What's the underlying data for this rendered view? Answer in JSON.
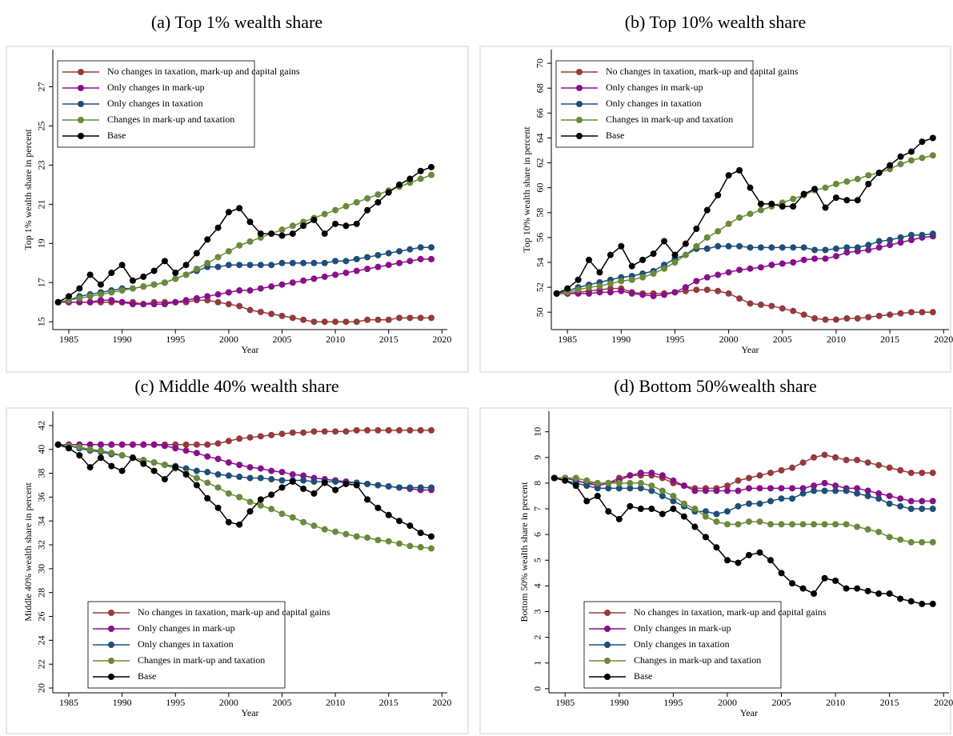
{
  "chart_data": [
    {
      "type": "line",
      "title": "(a) Top 1% wealth share",
      "xlabel": "Year",
      "ylabel": "Top 1% wealth share in percent",
      "legend": "upper left",
      "x": [
        1984,
        1985,
        1986,
        1987,
        1988,
        1989,
        1990,
        1991,
        1992,
        1993,
        1994,
        1995,
        1996,
        1997,
        1998,
        1999,
        2000,
        2001,
        2002,
        2003,
        2004,
        2005,
        2006,
        2007,
        2008,
        2009,
        2010,
        2011,
        2012,
        2013,
        2014,
        2015,
        2016,
        2017,
        2018,
        2019
      ],
      "xlim": [
        1983.5,
        2020.5
      ],
      "xticks": [
        1985,
        1990,
        1995,
        2000,
        2005,
        2010,
        2015,
        2020
      ],
      "ylim": [
        14.6,
        28.9
      ],
      "yticks": [
        15,
        17,
        19,
        21,
        23,
        25,
        27
      ],
      "series": [
        {
          "name": "No changes in taxation, mark-up and capital gains",
          "color": "#943b3b",
          "values": [
            16.0,
            16.0,
            16.0,
            16.0,
            16.0,
            16.0,
            16.0,
            16.0,
            15.9,
            16.0,
            16.0,
            16.0,
            16.0,
            16.1,
            16.1,
            16.0,
            15.9,
            15.8,
            15.6,
            15.5,
            15.4,
            15.3,
            15.2,
            15.1,
            15.0,
            15.0,
            15.0,
            15.0,
            15.0,
            15.1,
            15.1,
            15.1,
            15.2,
            15.2,
            15.2,
            15.2
          ]
        },
        {
          "name": "Only changes in mark-up",
          "color": "#8a0f8a",
          "values": [
            16.0,
            16.0,
            16.0,
            16.0,
            16.1,
            16.1,
            16.0,
            15.9,
            15.9,
            15.9,
            15.9,
            16.0,
            16.1,
            16.2,
            16.3,
            16.4,
            16.5,
            16.6,
            16.6,
            16.7,
            16.8,
            16.9,
            17.0,
            17.1,
            17.2,
            17.3,
            17.4,
            17.5,
            17.6,
            17.7,
            17.8,
            17.9,
            18.0,
            18.1,
            18.2,
            18.2
          ]
        },
        {
          "name": "Only changes in taxation",
          "color": "#1f4e79",
          "values": [
            16.0,
            16.1,
            16.3,
            16.4,
            16.5,
            16.6,
            16.7,
            16.7,
            16.8,
            16.9,
            17.0,
            17.2,
            17.4,
            17.6,
            17.8,
            17.8,
            17.9,
            17.9,
            17.9,
            17.9,
            17.9,
            18.0,
            18.0,
            18.0,
            18.0,
            18.0,
            18.1,
            18.1,
            18.2,
            18.3,
            18.4,
            18.5,
            18.6,
            18.7,
            18.8,
            18.8
          ]
        },
        {
          "name": "Changes in mark-up and taxation",
          "color": "#6a8a3a",
          "values": [
            16.0,
            16.1,
            16.2,
            16.3,
            16.4,
            16.5,
            16.6,
            16.7,
            16.8,
            16.9,
            17.0,
            17.2,
            17.4,
            17.7,
            18.0,
            18.3,
            18.6,
            18.9,
            19.1,
            19.3,
            19.5,
            19.7,
            19.9,
            20.1,
            20.3,
            20.5,
            20.7,
            20.9,
            21.1,
            21.3,
            21.5,
            21.7,
            21.9,
            22.1,
            22.3,
            22.5
          ]
        },
        {
          "name": "Base",
          "color": "#000000",
          "values": [
            16.0,
            16.3,
            16.7,
            17.4,
            16.9,
            17.5,
            17.9,
            17.1,
            17.3,
            17.6,
            18.1,
            17.5,
            17.9,
            18.5,
            19.2,
            19.8,
            20.6,
            20.8,
            20.1,
            19.5,
            19.5,
            19.4,
            19.5,
            19.9,
            20.2,
            19.5,
            20.0,
            19.9,
            20.0,
            20.7,
            21.1,
            21.6,
            22.0,
            22.3,
            22.7,
            22.9
          ]
        }
      ]
    },
    {
      "type": "line",
      "title": "(b) Top 10% wealth share",
      "xlabel": "Year",
      "ylabel": "Top 10% wealth share in percent",
      "legend": "upper left",
      "x": [
        1984,
        1985,
        1986,
        1987,
        1988,
        1989,
        1990,
        1991,
        1992,
        1993,
        1994,
        1995,
        1996,
        1997,
        1998,
        1999,
        2000,
        2001,
        2002,
        2003,
        2004,
        2005,
        2006,
        2007,
        2008,
        2009,
        2010,
        2011,
        2012,
        2013,
        2014,
        2015,
        2016,
        2017,
        2018,
        2019
      ],
      "xlim": [
        1983.5,
        2020.5
      ],
      "xticks": [
        1985,
        1990,
        1995,
        2000,
        2005,
        2010,
        2015,
        2020
      ],
      "ylim": [
        48.6,
        71.1
      ],
      "yticks": [
        50,
        52,
        54,
        56,
        58,
        60,
        62,
        64,
        66,
        68,
        70
      ],
      "series": [
        {
          "name": "No changes in taxation, mark-up and capital gains",
          "color": "#943b3b",
          "values": [
            51.5,
            51.5,
            51.6,
            51.7,
            51.8,
            51.9,
            51.9,
            51.6,
            51.5,
            51.5,
            51.5,
            51.6,
            51.7,
            51.8,
            51.8,
            51.7,
            51.5,
            51.1,
            50.7,
            50.6,
            50.5,
            50.3,
            50.1,
            49.8,
            49.5,
            49.4,
            49.4,
            49.5,
            49.5,
            49.6,
            49.7,
            49.8,
            49.9,
            50.0,
            50.0,
            50.0
          ]
        },
        {
          "name": "Only changes in mark-up",
          "color": "#8a0f8a",
          "values": [
            51.5,
            51.5,
            51.5,
            51.5,
            51.6,
            51.6,
            51.7,
            51.5,
            51.4,
            51.3,
            51.4,
            51.6,
            52.0,
            52.5,
            52.8,
            53.0,
            53.2,
            53.4,
            53.5,
            53.6,
            53.8,
            53.9,
            54.0,
            54.2,
            54.3,
            54.3,
            54.5,
            54.8,
            54.9,
            55.0,
            55.2,
            55.4,
            55.6,
            55.8,
            56.0,
            56.1
          ]
        },
        {
          "name": "Only changes in taxation",
          "color": "#1f4e79",
          "values": [
            51.5,
            51.7,
            52.0,
            52.2,
            52.4,
            52.6,
            52.8,
            52.9,
            53.1,
            53.3,
            53.8,
            54.3,
            54.6,
            55.1,
            55.1,
            55.3,
            55.3,
            55.3,
            55.2,
            55.2,
            55.2,
            55.2,
            55.2,
            55.2,
            55.0,
            55.0,
            55.1,
            55.2,
            55.2,
            55.4,
            55.7,
            55.8,
            56.0,
            56.2,
            56.2,
            56.3
          ]
        },
        {
          "name": "Changes in mark-up and taxation",
          "color": "#6a8a3a",
          "values": [
            51.5,
            51.6,
            51.8,
            52.0,
            52.1,
            52.3,
            52.5,
            52.6,
            52.8,
            53.1,
            53.5,
            54.0,
            54.6,
            55.3,
            56.0,
            56.5,
            57.1,
            57.6,
            57.9,
            58.2,
            58.5,
            58.8,
            59.1,
            59.4,
            59.8,
            60.0,
            60.3,
            60.5,
            60.7,
            61.0,
            61.2,
            61.5,
            61.9,
            62.2,
            62.4,
            62.6
          ]
        },
        {
          "name": "Base",
          "color": "#000000",
          "values": [
            51.5,
            51.9,
            52.6,
            54.2,
            53.2,
            54.6,
            55.3,
            53.7,
            54.2,
            54.7,
            55.7,
            54.6,
            55.5,
            56.7,
            58.2,
            59.4,
            61.0,
            61.4,
            60.0,
            58.7,
            58.7,
            58.5,
            58.5,
            59.5,
            59.9,
            58.4,
            59.2,
            59.0,
            59.0,
            60.3,
            61.2,
            61.8,
            62.5,
            62.9,
            63.7,
            64.0
          ]
        }
      ]
    },
    {
      "type": "line",
      "title": "(c) Middle 40% wealth share",
      "xlabel": "Year",
      "ylabel": "Middle 40% wealth share in percent",
      "legend": "lower left",
      "x": [
        1984,
        1985,
        1986,
        1987,
        1988,
        1989,
        1990,
        1991,
        1992,
        1993,
        1994,
        1995,
        1996,
        1997,
        1998,
        1999,
        2000,
        2001,
        2002,
        2003,
        2004,
        2005,
        2006,
        2007,
        2008,
        2009,
        2010,
        2011,
        2012,
        2013,
        2014,
        2015,
        2016,
        2017,
        2018,
        2019
      ],
      "xlim": [
        1983.5,
        2020.5
      ],
      "xticks": [
        1985,
        1990,
        1995,
        2000,
        2005,
        2010,
        2015,
        2020
      ],
      "ylim": [
        19.6,
        43.2
      ],
      "yticks": [
        20,
        22,
        24,
        26,
        28,
        30,
        32,
        34,
        36,
        38,
        40,
        42
      ],
      "series": [
        {
          "name": "No changes in taxation, mark-up and capital gains",
          "color": "#943b3b",
          "values": [
            40.4,
            40.4,
            40.4,
            40.4,
            40.4,
            40.4,
            40.4,
            40.4,
            40.4,
            40.4,
            40.4,
            40.4,
            40.4,
            40.4,
            40.4,
            40.5,
            40.7,
            40.9,
            41.0,
            41.1,
            41.2,
            41.3,
            41.4,
            41.4,
            41.5,
            41.5,
            41.5,
            41.5,
            41.6,
            41.6,
            41.6,
            41.6,
            41.6,
            41.6,
            41.6,
            41.6
          ]
        },
        {
          "name": "Only changes in mark-up",
          "color": "#8a0f8a",
          "values": [
            40.4,
            40.4,
            40.4,
            40.4,
            40.4,
            40.4,
            40.4,
            40.4,
            40.4,
            40.4,
            40.3,
            40.1,
            39.9,
            39.7,
            39.4,
            39.2,
            38.9,
            38.7,
            38.5,
            38.4,
            38.2,
            38.1,
            37.9,
            37.8,
            37.6,
            37.5,
            37.4,
            37.3,
            37.2,
            37.1,
            37.0,
            36.9,
            36.8,
            36.7,
            36.6,
            36.6
          ]
        },
        {
          "name": "Only changes in taxation",
          "color": "#1f4e79",
          "values": [
            40.4,
            40.3,
            40.1,
            39.9,
            39.8,
            39.6,
            39.5,
            39.3,
            39.1,
            38.9,
            38.7,
            38.6,
            38.4,
            38.2,
            38.1,
            37.9,
            37.8,
            37.7,
            37.6,
            37.6,
            37.5,
            37.4,
            37.4,
            37.4,
            37.3,
            37.3,
            37.3,
            37.2,
            37.2,
            37.1,
            37.0,
            36.9,
            36.8,
            36.8,
            36.8,
            36.8
          ]
        },
        {
          "name": "Changes in mark-up and taxation",
          "color": "#6a8a3a",
          "values": [
            40.4,
            40.3,
            40.2,
            40.0,
            39.9,
            39.7,
            39.5,
            39.3,
            39.1,
            38.9,
            38.7,
            38.4,
            38.0,
            37.6,
            37.2,
            36.8,
            36.3,
            36.0,
            35.6,
            35.3,
            35.0,
            34.6,
            34.3,
            33.9,
            33.6,
            33.3,
            33.1,
            32.9,
            32.7,
            32.6,
            32.4,
            32.3,
            32.1,
            31.9,
            31.8,
            31.7
          ]
        },
        {
          "name": "Base",
          "color": "#000000",
          "values": [
            40.4,
            40.1,
            39.5,
            38.5,
            39.3,
            38.6,
            38.2,
            39.3,
            38.8,
            38.2,
            37.5,
            38.5,
            37.9,
            37.0,
            35.9,
            35.1,
            33.9,
            33.7,
            34.8,
            35.8,
            36.2,
            36.8,
            37.3,
            36.7,
            36.3,
            37.2,
            36.6,
            37.1,
            37.0,
            35.8,
            35.1,
            34.5,
            34.0,
            33.6,
            33.0,
            32.7
          ]
        }
      ]
    },
    {
      "type": "line",
      "title": "(d) Bottom 50%wealth share",
      "xlabel": "Year",
      "ylabel": "Bottom 50% wealth share in percent",
      "legend": "lower left",
      "x": [
        1984,
        1985,
        1986,
        1987,
        1988,
        1989,
        1990,
        1991,
        1992,
        1993,
        1994,
        1995,
        1996,
        1997,
        1998,
        1999,
        2000,
        2001,
        2002,
        2003,
        2004,
        2005,
        2006,
        2007,
        2008,
        2009,
        2010,
        2011,
        2012,
        2013,
        2014,
        2015,
        2016,
        2017,
        2018,
        2019
      ],
      "xlim": [
        1983.5,
        2020.5
      ],
      "xticks": [
        1985,
        1990,
        1995,
        2000,
        2005,
        2010,
        2015,
        2020
      ],
      "ylim": [
        -0.16,
        10.8
      ],
      "yticks": [
        0,
        1,
        2,
        3,
        4,
        5,
        6,
        7,
        8,
        9,
        10
      ],
      "series": [
        {
          "name": "No changes in taxation, mark-up and capital gains",
          "color": "#943b3b",
          "values": [
            8.2,
            8.2,
            8.1,
            8.0,
            8.0,
            8.0,
            8.2,
            8.3,
            8.3,
            8.3,
            8.2,
            8.0,
            7.9,
            7.8,
            7.8,
            7.8,
            7.9,
            8.1,
            8.2,
            8.3,
            8.4,
            8.5,
            8.6,
            8.8,
            9.0,
            9.1,
            9.0,
            8.9,
            8.9,
            8.8,
            8.7,
            8.6,
            8.5,
            8.4,
            8.4,
            8.4
          ]
        },
        {
          "name": "Only changes in mark-up",
          "color": "#8a0f8a",
          "values": [
            8.2,
            8.2,
            8.1,
            8.0,
            7.9,
            8.0,
            8.1,
            8.3,
            8.4,
            8.4,
            8.3,
            8.1,
            7.9,
            7.7,
            7.7,
            7.7,
            7.7,
            7.7,
            7.8,
            7.8,
            7.8,
            7.8,
            7.8,
            7.8,
            7.9,
            8.0,
            7.9,
            7.8,
            7.8,
            7.7,
            7.6,
            7.5,
            7.4,
            7.3,
            7.3,
            7.3
          ]
        },
        {
          "name": "Only changes in taxation",
          "color": "#1f4e79",
          "values": [
            8.2,
            8.1,
            8.0,
            7.9,
            7.8,
            7.8,
            7.8,
            7.8,
            7.8,
            7.7,
            7.5,
            7.3,
            7.1,
            6.9,
            6.9,
            6.8,
            6.9,
            7.1,
            7.2,
            7.2,
            7.3,
            7.4,
            7.4,
            7.6,
            7.7,
            7.7,
            7.7,
            7.7,
            7.6,
            7.5,
            7.4,
            7.2,
            7.1,
            7.0,
            7.0,
            7.0
          ]
        },
        {
          "name": "Changes in mark-up and taxation",
          "color": "#6a8a3a",
          "values": [
            8.2,
            8.2,
            8.2,
            8.1,
            8.0,
            8.0,
            8.0,
            8.0,
            8.0,
            7.9,
            7.7,
            7.5,
            7.2,
            7.0,
            6.7,
            6.5,
            6.4,
            6.4,
            6.5,
            6.5,
            6.4,
            6.4,
            6.4,
            6.4,
            6.4,
            6.4,
            6.4,
            6.4,
            6.3,
            6.2,
            6.1,
            5.9,
            5.8,
            5.7,
            5.7,
            5.7
          ]
        },
        {
          "name": "Base",
          "color": "#000000",
          "values": [
            8.2,
            8.1,
            7.9,
            7.3,
            7.5,
            6.9,
            6.6,
            7.1,
            7.0,
            7.0,
            6.8,
            7.0,
            6.7,
            6.3,
            5.9,
            5.5,
            5.0,
            4.9,
            5.2,
            5.3,
            5.0,
            4.5,
            4.1,
            3.9,
            3.7,
            4.3,
            4.2,
            3.9,
            3.9,
            3.8,
            3.7,
            3.7,
            3.5,
            3.4,
            3.3,
            3.3
          ]
        }
      ]
    }
  ]
}
